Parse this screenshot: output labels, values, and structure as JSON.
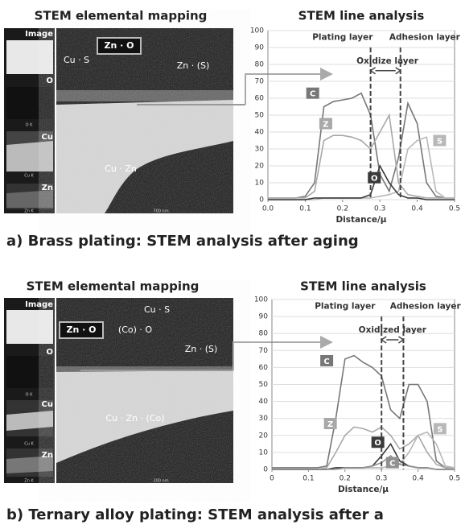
{
  "panels": [
    {
      "mapping_title": "STEM elemental mapping",
      "thumbnails": [
        "Image",
        "O",
        "Cu",
        "Zn"
      ],
      "thumbnail_notes": [
        "O K",
        "Cu K",
        "Zn K"
      ],
      "labels": [
        "Cu · S",
        "Zn · O",
        "Zn · (S)",
        "Cu · Zn"
      ],
      "scale_bar": "700 nm",
      "caption": "a)  Brass plating: STEM analysis after aging"
    },
    {
      "mapping_title": "STEM elemental mapping",
      "thumbnails": [
        "Image",
        "O",
        "Cu",
        "Zn"
      ],
      "thumbnail_notes": [
        "O K",
        "Cu K",
        "Zn K"
      ],
      "labels": [
        "Zn · O",
        "(Co) · O",
        "Cu · S",
        "Zn · (S)",
        "Cu · Zn · (Co)"
      ],
      "scale_bar": "200 nm",
      "caption": "b)  Ternary alloy plating: STEM analysis after a"
    }
  ],
  "chart_data": [
    {
      "type": "line",
      "title": "STEM line analysis",
      "x_label": "Distance/μ",
      "x": [
        0,
        0.025,
        0.05,
        0.075,
        0.1,
        0.125,
        0.15,
        0.175,
        0.2,
        0.225,
        0.25,
        0.275,
        0.3,
        0.325,
        0.35,
        0.375,
        0.4,
        0.425,
        0.45,
        0.475,
        0.5
      ],
      "xlim": [
        0,
        0.5
      ],
      "xticks": [
        {
          "value": 0,
          "label": "0.0"
        },
        0.1,
        0.2,
        0.3,
        0.4,
        0.5
      ],
      "ylim": [
        0,
        100
      ],
      "yticks": [
        0,
        10,
        20,
        30,
        40,
        50,
        60,
        70,
        80,
        90,
        100
      ],
      "grid": true,
      "boundaries": [
        0.275,
        0.355
      ],
      "annotations": [
        "Plating layer",
        "Adhesion layer",
        "Oxidize layer"
      ],
      "series": [
        {
          "name": "C",
          "color": "#777777",
          "values": [
            1,
            1,
            1,
            1,
            2,
            10,
            55,
            58,
            59,
            60,
            63,
            50,
            15,
            5,
            25,
            57,
            45,
            10,
            2,
            1,
            1
          ]
        },
        {
          "name": "Z",
          "color": "#a8a8a8",
          "values": [
            1,
            1,
            1,
            1,
            1,
            5,
            35,
            38,
            38,
            37,
            35,
            30,
            40,
            50,
            10,
            3,
            2,
            1,
            1,
            1,
            1
          ]
        },
        {
          "name": "S",
          "color": "#b8b8b8",
          "values": [
            0,
            0,
            0,
            0,
            0,
            0,
            1,
            1,
            1,
            1,
            1,
            1,
            2,
            3,
            5,
            30,
            35,
            37,
            5,
            1,
            1
          ]
        },
        {
          "name": "O",
          "color": "#3a3a3a",
          "values": [
            0,
            0,
            0,
            0,
            0,
            1,
            1,
            1,
            1,
            1,
            1,
            3,
            20,
            10,
            3,
            1,
            1,
            0,
            0,
            0,
            0
          ]
        }
      ]
    },
    {
      "type": "line",
      "title": "STEM line analysis",
      "x_label": "Distance/μ",
      "x": [
        0,
        0.025,
        0.05,
        0.075,
        0.1,
        0.125,
        0.15,
        0.175,
        0.2,
        0.225,
        0.25,
        0.275,
        0.3,
        0.325,
        0.35,
        0.375,
        0.4,
        0.425,
        0.45,
        0.475,
        0.5
      ],
      "xlim": [
        0,
        0.5
      ],
      "xticks": [
        0,
        0.1,
        0.2,
        0.3,
        0.4,
        0.5
      ],
      "ylim": [
        0,
        100
      ],
      "yticks": [
        0,
        10,
        20,
        30,
        40,
        50,
        60,
        70,
        80,
        90,
        100
      ],
      "grid": true,
      "boundaries": [
        0.3,
        0.36
      ],
      "annotations": [
        "Plating layer",
        "Adhesion layer",
        "Oxidized layer"
      ],
      "series": [
        {
          "name": "C",
          "color": "#777777",
          "values": [
            1,
            1,
            1,
            1,
            1,
            1,
            2,
            30,
            65,
            67,
            63,
            60,
            55,
            35,
            30,
            50,
            50,
            40,
            5,
            1,
            1
          ]
        },
        {
          "name": "Z",
          "color": "#a8a8a8",
          "values": [
            0,
            0,
            0,
            0,
            0,
            0,
            1,
            10,
            20,
            25,
            24,
            22,
            25,
            20,
            12,
            15,
            20,
            10,
            3,
            1,
            1
          ]
        },
        {
          "name": "S",
          "color": "#b8b8b8",
          "values": [
            0,
            0,
            0,
            0,
            0,
            0,
            0,
            1,
            1,
            1,
            1,
            1,
            1,
            2,
            3,
            10,
            20,
            22,
            15,
            2,
            1
          ]
        },
        {
          "name": "O",
          "color": "#3a3a3a",
          "values": [
            0,
            0,
            0,
            0,
            0,
            0,
            0,
            1,
            1,
            1,
            1,
            2,
            8,
            15,
            5,
            2,
            1,
            1,
            0,
            0,
            0
          ]
        },
        {
          "name": "C",
          "color": "#909090",
          "values": [
            0,
            0,
            0,
            0,
            0,
            0,
            0,
            0,
            1,
            1,
            1,
            2,
            4,
            8,
            3,
            2,
            1,
            1,
            0,
            0,
            0
          ]
        }
      ]
    }
  ]
}
